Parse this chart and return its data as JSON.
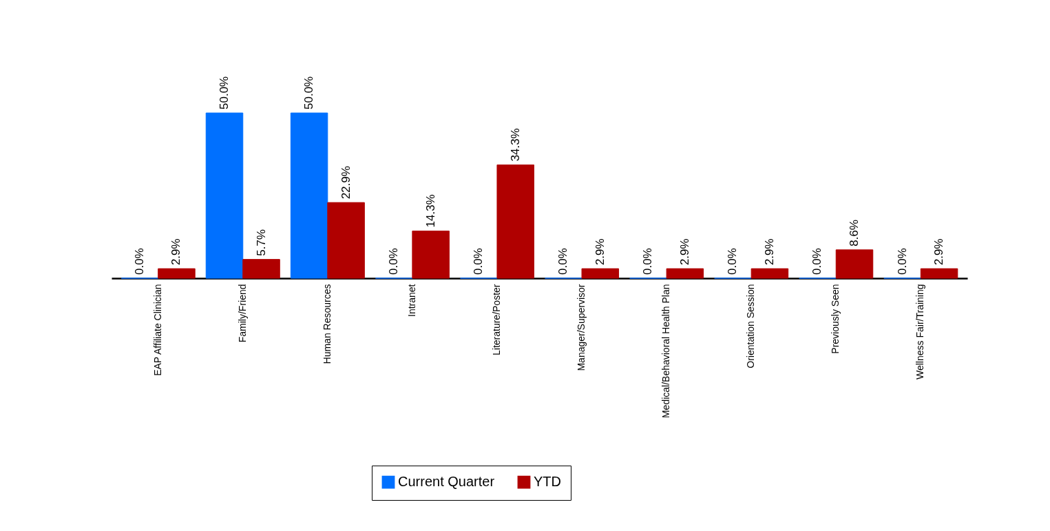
{
  "chart_data": {
    "type": "bar",
    "categories": [
      "EAP Affiliate Clinician",
      "Family/Friend",
      "Human Resources",
      "Intranet",
      "Literature/Poster",
      "Manager/Supervisor",
      "Medical/Behavioral Health Plan",
      "Orientation Session",
      "Previously Seen",
      "Wellness Fair/Training"
    ],
    "series": [
      {
        "name": "Current Quarter",
        "color": "#0070ff",
        "values": [
          0.0,
          50.0,
          50.0,
          0.0,
          0.0,
          0.0,
          0.0,
          0.0,
          0.0,
          0.0
        ],
        "value_labels": [
          "0.0%",
          "50.0%",
          "50.0%",
          "0.0%",
          "0.0%",
          "0.0%",
          "0.0%",
          "0.0%",
          "0.0%",
          "0.0%"
        ]
      },
      {
        "name": "YTD",
        "color": "#b00000",
        "values": [
          2.9,
          5.7,
          22.9,
          14.3,
          34.3,
          2.9,
          2.9,
          2.9,
          8.6,
          2.9
        ],
        "value_labels": [
          "2.9%",
          "5.7%",
          "22.9%",
          "14.3%",
          "34.3%",
          "2.9%",
          "2.9%",
          "2.9%",
          "8.6%",
          "2.9%"
        ]
      }
    ],
    "legend": "bottom",
    "grid": false
  }
}
